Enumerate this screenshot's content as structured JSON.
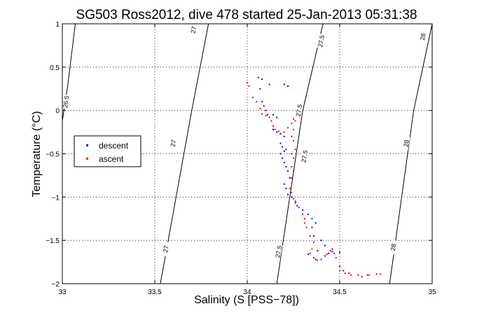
{
  "chart_data": {
    "type": "scatter",
    "title": "SG503 Ross2012, dive 478 started 25-Jan-2013 05:31:38",
    "xlabel": "Salinity (S [PSS−78])",
    "ylabel": "Temperature (°C)",
    "xlim": [
      33,
      35
    ],
    "ylim": [
      -2,
      1
    ],
    "xticks": [
      33,
      33.5,
      34,
      34.5,
      35
    ],
    "xtick_labels": [
      "33",
      "33.5",
      "34",
      "34.5",
      "35"
    ],
    "yticks": [
      -2,
      -1.5,
      -1,
      -0.5,
      0,
      0.5,
      1
    ],
    "ytick_labels": [
      "−2",
      "−1.5",
      "−1",
      "−0.5",
      "0",
      "0.5",
      "1"
    ],
    "grid": true,
    "legend_position": "left-middle",
    "isopycnals": [
      {
        "label": "26.5",
        "points": [
          [
            33.0,
            -0.12
          ],
          [
            33.03,
            0.3
          ],
          [
            33.07,
            1.0
          ]
        ],
        "labels_at": [
          [
            33.02,
            0.1
          ]
        ]
      },
      {
        "label": "27",
        "points": [
          [
            33.53,
            -2.0
          ],
          [
            33.7,
            0.0
          ],
          [
            33.79,
            1.0
          ]
        ],
        "labels_at": [
          [
            33.56,
            -1.6
          ],
          [
            33.6,
            -0.38
          ],
          [
            33.71,
            0.93
          ]
        ]
      },
      {
        "label": "27.5",
        "points": [
          [
            34.16,
            -2.0
          ],
          [
            34.3,
            0.0
          ],
          [
            34.41,
            1.0
          ]
        ],
        "labels_at": [
          [
            34.17,
            -1.63
          ],
          [
            34.28,
            0.0
          ],
          [
            34.31,
            -0.53
          ],
          [
            34.4,
            0.8
          ]
        ]
      },
      {
        "label": "28",
        "points": [
          [
            34.77,
            -2.0
          ],
          [
            34.9,
            0.0
          ],
          [
            35.0,
            1.0
          ]
        ],
        "labels_at": [
          [
            34.79,
            -1.58
          ],
          [
            34.86,
            -0.38
          ],
          [
            34.95,
            0.85
          ]
        ]
      }
    ],
    "series": [
      {
        "name": "descent",
        "color": "#0000ff",
        "points": [
          [
            34.06,
            0.38
          ],
          [
            34.08,
            0.36
          ],
          [
            34.12,
            0.3
          ],
          [
            34.2,
            0.3
          ],
          [
            34.22,
            0.28
          ],
          [
            34.07,
            0.25
          ],
          [
            34.08,
            0.1
          ],
          [
            34.09,
            0.05
          ],
          [
            34.1,
            0.0
          ],
          [
            34.11,
            -0.05
          ],
          [
            34.14,
            -0.05
          ],
          [
            34.16,
            -0.08
          ],
          [
            34.14,
            -0.22
          ],
          [
            34.16,
            -0.25
          ],
          [
            34.18,
            -0.27
          ],
          [
            34.2,
            -0.3
          ],
          [
            34.18,
            -0.38
          ],
          [
            34.19,
            -0.42
          ],
          [
            34.2,
            -0.47
          ],
          [
            34.21,
            -0.45
          ],
          [
            34.18,
            -0.5
          ],
          [
            34.19,
            -0.55
          ],
          [
            34.2,
            -0.6
          ],
          [
            34.21,
            -0.65
          ],
          [
            34.22,
            -0.7
          ],
          [
            34.23,
            -0.78
          ],
          [
            34.2,
            -0.85
          ],
          [
            34.21,
            -0.9
          ],
          [
            34.22,
            -0.97
          ],
          [
            34.24,
            -1.0
          ],
          [
            34.26,
            -1.05
          ],
          [
            34.27,
            -1.1
          ],
          [
            34.3,
            -1.15
          ],
          [
            34.33,
            -1.2
          ],
          [
            34.35,
            -1.25
          ],
          [
            34.37,
            -1.3
          ],
          [
            34.35,
            -1.35
          ],
          [
            34.36,
            -1.45
          ],
          [
            34.4,
            -1.5
          ],
          [
            34.42,
            -1.56
          ],
          [
            34.46,
            -1.6
          ],
          [
            34.5,
            -1.64
          ],
          [
            34.44,
            -1.65
          ],
          [
            34.38,
            -1.62
          ],
          [
            34.33,
            -1.66
          ],
          [
            34.37,
            -1.72
          ],
          [
            34.42,
            -1.68
          ],
          [
            34.46,
            -1.63
          ],
          [
            34.5,
            -1.8
          ],
          [
            34.52,
            -1.85
          ],
          [
            34.55,
            -1.88
          ],
          [
            34.6,
            -1.9
          ],
          [
            34.62,
            -1.92
          ],
          [
            34.65,
            -1.9
          ]
        ]
      },
      {
        "name": "ascent",
        "color": "#ff0000",
        "points": [
          [
            34.0,
            0.32
          ],
          [
            34.01,
            0.28
          ],
          [
            34.03,
            0.15
          ],
          [
            34.05,
            0.1
          ],
          [
            34.07,
            0.02
          ],
          [
            34.08,
            -0.04
          ],
          [
            34.1,
            -0.06
          ],
          [
            34.12,
            -0.08
          ],
          [
            34.13,
            -0.12
          ],
          [
            34.14,
            -0.18
          ],
          [
            34.15,
            -0.22
          ],
          [
            34.17,
            -0.24
          ],
          [
            34.2,
            -0.25
          ],
          [
            34.22,
            -0.2
          ],
          [
            34.24,
            -0.15
          ],
          [
            34.25,
            -0.1
          ],
          [
            34.26,
            -0.12
          ],
          [
            34.25,
            -0.22
          ],
          [
            34.24,
            -0.3
          ],
          [
            34.25,
            -0.35
          ],
          [
            34.26,
            -0.45
          ],
          [
            34.24,
            -0.5
          ],
          [
            34.25,
            -0.55
          ],
          [
            34.24,
            -0.65
          ],
          [
            34.25,
            -0.7
          ],
          [
            34.24,
            -0.78
          ],
          [
            34.23,
            -0.9
          ],
          [
            34.24,
            -0.95
          ],
          [
            34.25,
            -1.02
          ],
          [
            34.26,
            -1.07
          ],
          [
            34.28,
            -1.12
          ],
          [
            34.3,
            -1.2
          ],
          [
            34.31,
            -1.25
          ],
          [
            34.31,
            -1.3
          ],
          [
            34.32,
            -1.35
          ],
          [
            34.34,
            -1.45
          ],
          [
            34.36,
            -1.52
          ],
          [
            34.35,
            -1.6
          ],
          [
            34.34,
            -1.65
          ],
          [
            34.36,
            -1.7
          ],
          [
            34.38,
            -1.73
          ],
          [
            34.4,
            -1.72
          ],
          [
            34.43,
            -1.66
          ],
          [
            34.45,
            -1.62
          ],
          [
            34.47,
            -1.65
          ],
          [
            34.48,
            -1.7
          ],
          [
            34.5,
            -1.85
          ],
          [
            34.53,
            -1.88
          ],
          [
            34.56,
            -1.9
          ],
          [
            34.6,
            -1.9
          ],
          [
            34.62,
            -1.92
          ],
          [
            34.66,
            -1.9
          ],
          [
            34.7,
            -1.89
          ],
          [
            34.72,
            -1.89
          ]
        ]
      }
    ]
  }
}
